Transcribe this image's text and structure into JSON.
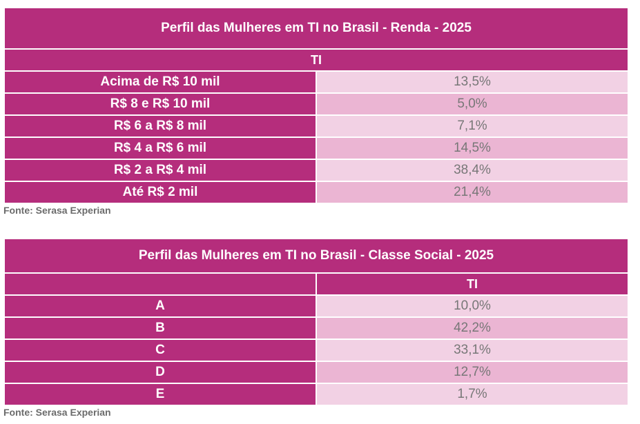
{
  "tables": [
    {
      "title": "Perfil das Mulheres em TI no Brasil - Renda - 2025",
      "column_header": "TI",
      "rows": [
        {
          "label": "Acima de R$ 10 mil",
          "value": "13,5%"
        },
        {
          "label": "R$ 8 e R$ 10 mil",
          "value": "5,0%"
        },
        {
          "label": "R$ 6 a R$ 8 mil",
          "value": "7,1%"
        },
        {
          "label": "R$ 4 a R$ 6 mil",
          "value": "14,5%"
        },
        {
          "label": "R$ 2 a R$ 4 mil",
          "value": "38,4%"
        },
        {
          "label": "Até R$ 2 mil",
          "value": "21,4%"
        }
      ],
      "source": "Fonte: Serasa Experian"
    },
    {
      "title": "Perfil das Mulheres em TI no Brasil - Classe Social - 2025",
      "column_header": "TI",
      "rows": [
        {
          "label": "A",
          "value": "10,0%"
        },
        {
          "label": "B",
          "value": "42,2%"
        },
        {
          "label": "C",
          "value": "33,1%"
        },
        {
          "label": "D",
          "value": "12,7%"
        },
        {
          "label": "E",
          "value": "1,7%"
        }
      ],
      "source": "Fonte: Serasa Experian"
    }
  ],
  "colors": {
    "header_magenta": "#b52d7c",
    "row_light": "#f2d1e4",
    "row_medium": "#ebb5d3",
    "value_text": "#777777",
    "source_text": "#6b6b6b"
  }
}
